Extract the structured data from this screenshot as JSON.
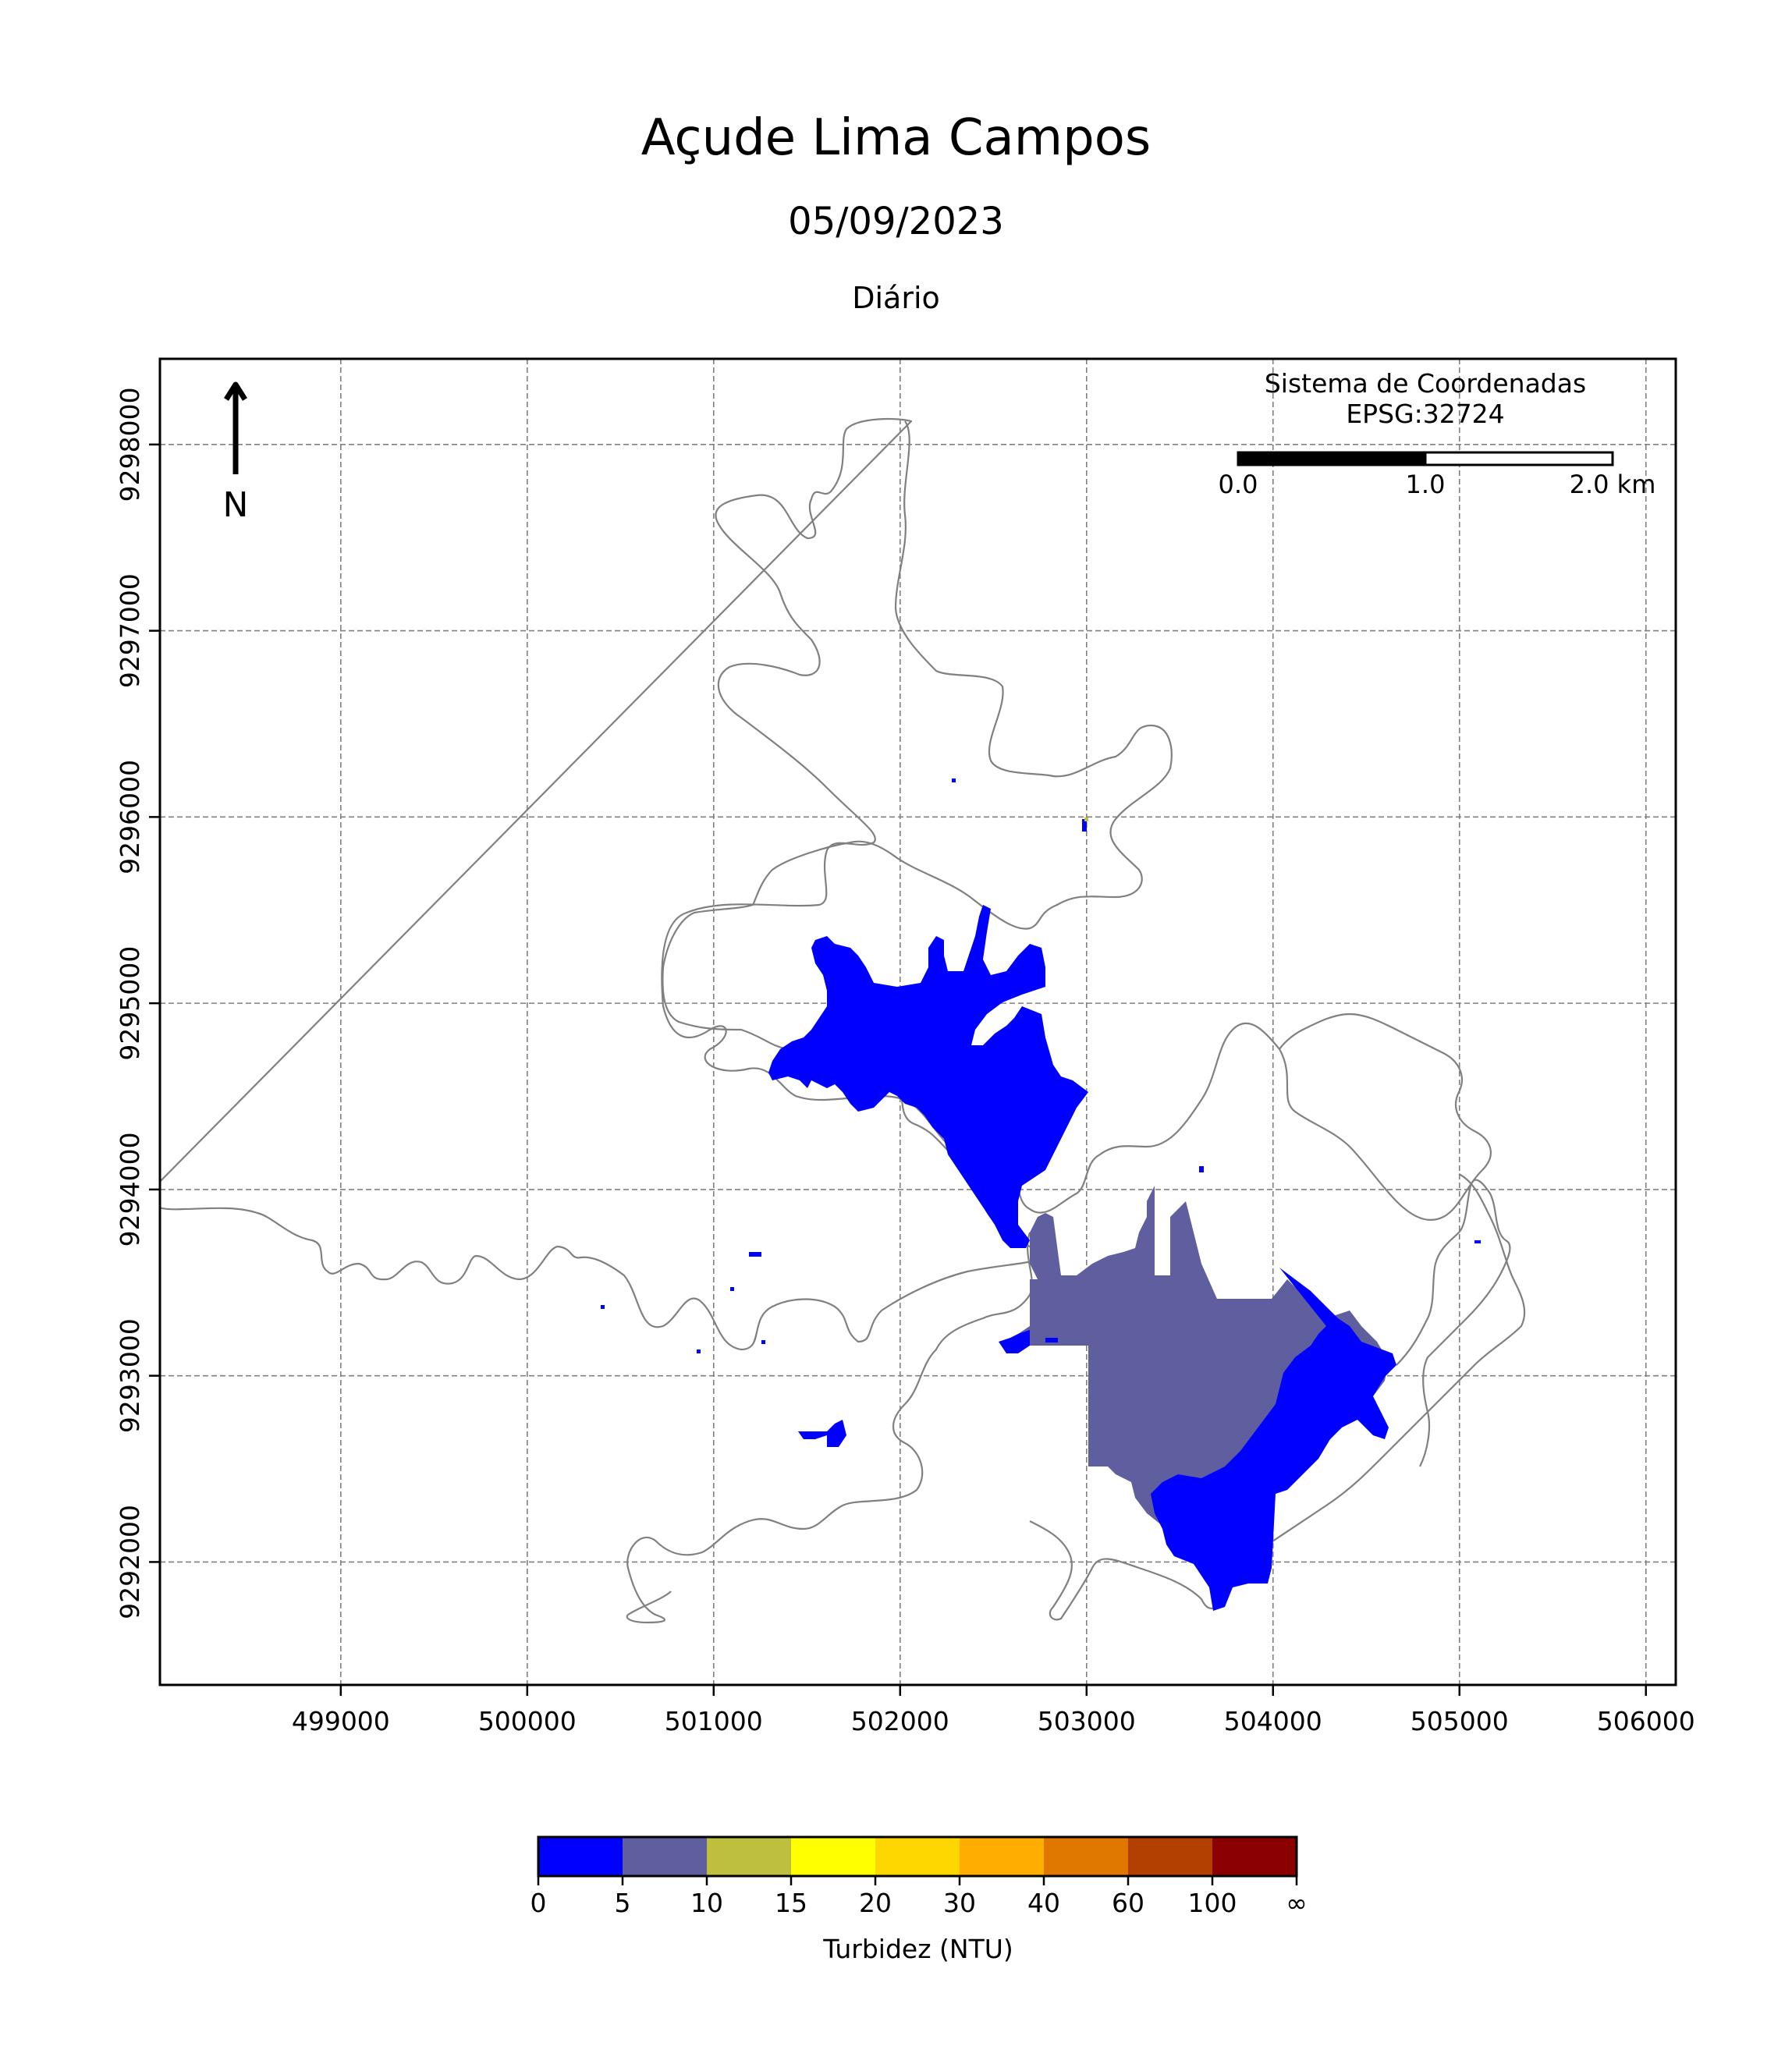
{
  "title": "Açude Lima Campos",
  "date": "05/09/2023",
  "period": "Diário",
  "crs": {
    "line1": "Sistema de Coordenadas",
    "line2": "EPSG:32724"
  },
  "scalebar": {
    "labels": [
      "0.0",
      "1.0",
      "2.0 km"
    ]
  },
  "north_label": "N",
  "x_ticks": [
    499000,
    500000,
    501000,
    502000,
    503000,
    504000,
    505000,
    506000
  ],
  "y_ticks": [
    9292000,
    9293000,
    9294000,
    9295000,
    9296000,
    9297000,
    9298000
  ],
  "x_range": [
    498030,
    506160
  ],
  "y_range": [
    9291340,
    9298460
  ],
  "grid": true,
  "colorbar": {
    "label": "Turbidez (NTU)",
    "bounds": [
      "0",
      "5",
      "10",
      "15",
      "20",
      "30",
      "40",
      "60",
      "100",
      "∞"
    ],
    "colors": [
      "#0000ff",
      "#5f5f9f",
      "#bfbf3f",
      "#ffff00",
      "#ffd700",
      "#ffae00",
      "#e07800",
      "#b34000",
      "#8b0000"
    ]
  },
  "colors": {
    "outline": "#808080",
    "low_turbidity": "#0000ff",
    "medium_turbidity": "#5f5f9f"
  }
}
